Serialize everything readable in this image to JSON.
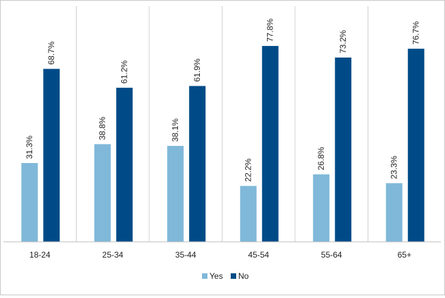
{
  "chart_data": {
    "type": "bar",
    "title": "",
    "xlabel": "",
    "ylabel": "",
    "ylim": [
      0,
      100
    ],
    "grid": false,
    "legend_position": "bottom-center",
    "categories": [
      "18-24",
      "25-34",
      "35-44",
      "45-54",
      "55-64",
      "65+"
    ],
    "series": [
      {
        "name": "Yes",
        "color": "#7fb8d9",
        "values": [
          31.3,
          38.8,
          38.1,
          22.2,
          26.8,
          23.3
        ],
        "labels": [
          "31.3%",
          "38.8%",
          "38.1%",
          "22.2%",
          "26.8%",
          "23.3%"
        ]
      },
      {
        "name": "No",
        "color": "#004b87",
        "values": [
          68.7,
          61.2,
          61.9,
          77.8,
          73.2,
          76.7
        ],
        "labels": [
          "68.7%",
          "61.2%",
          "61.9%",
          "77.8%",
          "73.2%",
          "76.7%"
        ]
      }
    ]
  }
}
